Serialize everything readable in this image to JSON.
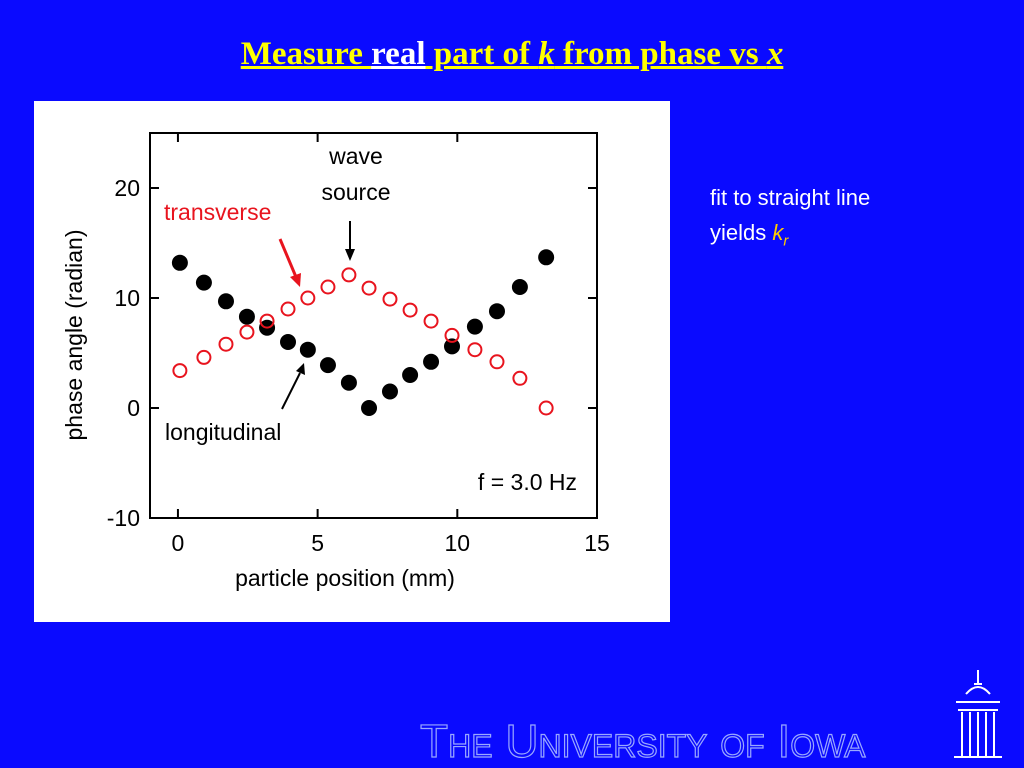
{
  "slide": {
    "title_parts": [
      "Measure ",
      "real",
      " part of ",
      "k",
      " from phase vs ",
      "x"
    ],
    "note": {
      "line1": "fit to straight line",
      "line2": "yields ",
      "symbol": "k",
      "subscript": "r"
    },
    "footer": "The University of Iowa"
  },
  "chart_data": {
    "type": "scatter",
    "xlabel": "particle position (mm)",
    "ylabel": "phase angle (radian)",
    "xlim": [
      -1,
      15
    ],
    "xticks": [
      0,
      5,
      10,
      15
    ],
    "ylim": [
      -10,
      25
    ],
    "yticks": [
      -10,
      0,
      10,
      20
    ],
    "annotations": {
      "wave_source": [
        "wave",
        "source"
      ],
      "transverse": "transverse",
      "longitudinal": "longitudinal",
      "frequency": "f = 3.0 Hz"
    },
    "series": [
      {
        "name": "longitudinal",
        "color": "#000000",
        "marker": "filled",
        "x": [
          0.07,
          0.93,
          1.72,
          2.47,
          3.19,
          3.94,
          4.65,
          5.37,
          6.12,
          6.84,
          7.59,
          8.31,
          9.06,
          9.81,
          10.63,
          11.42,
          12.24,
          13.18
        ],
        "values": [
          13.2,
          11.4,
          9.7,
          8.3,
          7.3,
          6.0,
          5.3,
          3.9,
          2.3,
          0,
          1.5,
          3.0,
          4.2,
          5.6,
          7.4,
          8.8,
          11.0,
          13.7
        ]
      },
      {
        "name": "transverse",
        "color": "#e8141e",
        "marker": "open",
        "x": [
          0.07,
          0.93,
          1.72,
          2.47,
          3.19,
          3.94,
          4.65,
          5.37,
          6.12,
          6.84,
          7.59,
          8.31,
          9.06,
          9.81,
          10.63,
          11.42,
          12.24,
          13.18
        ],
        "values": [
          3.4,
          4.6,
          5.8,
          6.9,
          7.9,
          9.0,
          10.0,
          11.0,
          12.1,
          10.9,
          9.9,
          8.9,
          7.9,
          6.6,
          5.3,
          4.2,
          2.7,
          0
        ]
      }
    ]
  }
}
